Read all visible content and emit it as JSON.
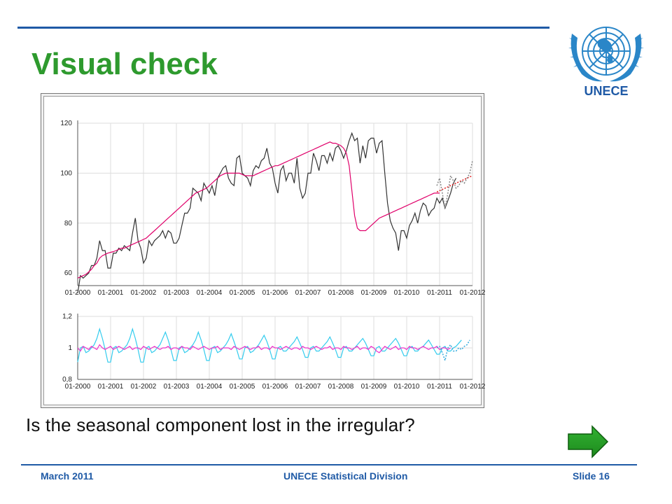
{
  "slide": {
    "title": "Visual check",
    "question": "Is the seasonal component lost in the irregular?",
    "footer_left": "March 2011",
    "footer_center": "UNECE Statistical Division",
    "footer_right": "Slide 16",
    "logo_text": "UNECE",
    "accent_color": "#1f5aa6",
    "title_color": "#2e9a2e",
    "next_icon": "right-arrow-icon"
  },
  "chart_data": [
    {
      "type": "line",
      "x_tick_labels": [
        "01-2000",
        "01-2001",
        "01-2002",
        "01-2003",
        "01-2004",
        "01-2005",
        "01-2006",
        "01-2007",
        "01-2008",
        "01-2009",
        "01-2010",
        "01-2011",
        "01-2012"
      ],
      "y_tick_labels": [
        "60",
        "80",
        "100",
        "120"
      ],
      "ylim": [
        55,
        120
      ],
      "grid": true,
      "series": [
        {
          "key": "raw",
          "color": "#333333",
          "start_year": 2000,
          "values": [
            52,
            59,
            58,
            59,
            60,
            63,
            63,
            66,
            73,
            69,
            69,
            62,
            62,
            68,
            68,
            70,
            69,
            71,
            70,
            69,
            76,
            82,
            73,
            70,
            64,
            66,
            73,
            71,
            73,
            74,
            75,
            77,
            74,
            77,
            76,
            72,
            72,
            74,
            79,
            84,
            84,
            86,
            94,
            93,
            92,
            89,
            96,
            94,
            92,
            95,
            91,
            98,
            100,
            102,
            103,
            98,
            96,
            95,
            106,
            107,
            100,
            99,
            98,
            95,
            101,
            103,
            102,
            105,
            106,
            110,
            104,
            102,
            96,
            92,
            101,
            103,
            97,
            100,
            100,
            96,
            106,
            94,
            90,
            92,
            100,
            100,
            108,
            105,
            101,
            107,
            107,
            104,
            108,
            105,
            110,
            111,
            109,
            106,
            109,
            113,
            116,
            113,
            114,
            104,
            111,
            106,
            113,
            114,
            114,
            108,
            112,
            113,
            100,
            88,
            81,
            78,
            76,
            69,
            77,
            77,
            74,
            79,
            81,
            84,
            80,
            85,
            88,
            87,
            83,
            85,
            86,
            90,
            88,
            90,
            86,
            89,
            92,
            96,
            98
          ]
        },
        {
          "key": "trend",
          "color": "#e0006a",
          "start_year": 2000,
          "values": [
            58,
            58.5,
            59,
            59.5,
            60.5,
            61.5,
            63,
            64,
            66,
            67,
            67.5,
            68,
            68.3,
            68.6,
            69,
            69.5,
            70,
            70,
            70.5,
            71,
            71.5,
            72,
            72.5,
            73,
            73.5,
            74,
            75,
            76,
            77,
            78,
            79,
            80,
            81,
            82,
            83,
            84,
            85,
            86,
            87,
            88,
            89,
            90,
            91,
            92,
            92.5,
            93,
            93.5,
            94,
            95,
            96,
            97,
            98,
            99,
            99.5,
            100,
            100,
            100,
            100,
            100,
            100,
            99.5,
            99,
            99,
            99,
            99,
            99.5,
            100,
            100.5,
            101,
            101.5,
            102,
            102.5,
            103,
            103,
            103.5,
            104,
            104.5,
            105,
            105.5,
            106,
            106.5,
            107,
            107.5,
            108,
            108.5,
            109,
            109.5,
            110,
            110.5,
            111,
            111.5,
            112,
            112.5,
            112,
            112,
            111.5,
            111,
            110,
            108,
            103,
            93,
            83,
            78,
            77,
            77,
            77,
            78,
            79,
            80,
            81,
            82,
            82.5,
            83,
            83.5,
            84,
            84.5,
            85,
            85.5,
            86,
            86.5,
            87,
            87.5,
            88,
            88.5,
            89,
            89.5,
            90,
            90.5,
            91,
            91.5,
            92,
            92,
            92
          ]
        },
        {
          "key": "trend_forecast",
          "color": "#e02020",
          "start_year": 2010.917,
          "values": [
            92.5,
            93,
            93.5,
            94,
            94.5,
            95,
            95.5,
            96,
            96.5,
            97,
            97.5,
            98,
            98.5,
            99
          ]
        },
        {
          "key": "raw_forecast",
          "color": "#888888",
          "start_year": 2010.917,
          "values": [
            95,
            98,
            92,
            86,
            92,
            99,
            97,
            94,
            95,
            97,
            96,
            98,
            100,
            105
          ]
        }
      ]
    },
    {
      "type": "line",
      "x_tick_labels": [
        "01-2000",
        "01-2001",
        "01-2002",
        "01-2003",
        "01-2004",
        "01-2005",
        "01-2006",
        "01-2007",
        "01-2008",
        "01-2009",
        "01-2010",
        "01-2011",
        "01-2012"
      ],
      "y_tick_labels": [
        "0,8",
        "1",
        "1,2"
      ],
      "ylim": [
        0.8,
        1.2
      ],
      "grid": true,
      "series": [
        {
          "key": "seasonal",
          "color": "#33ccee",
          "start_year": 2000,
          "values": [
            0.91,
            1.0,
            1.01,
            0.97,
            0.98,
            1.0,
            1.02,
            1.06,
            1.12,
            1.06,
            0.99,
            0.91,
            0.91,
            1.0,
            1.01,
            0.97,
            0.98,
            1.0,
            1.02,
            1.06,
            1.12,
            1.06,
            0.99,
            0.91,
            0.91,
            1.0,
            1.01,
            0.97,
            0.98,
            1.0,
            1.02,
            1.06,
            1.1,
            1.05,
            0.99,
            0.92,
            0.92,
            1.0,
            1.01,
            0.97,
            0.98,
            1.0,
            1.02,
            1.05,
            1.1,
            1.05,
            0.99,
            0.92,
            0.92,
            1.0,
            1.01,
            0.97,
            0.98,
            1.0,
            1.02,
            1.05,
            1.09,
            1.04,
            0.99,
            0.93,
            0.93,
            1.0,
            1.01,
            0.97,
            0.98,
            1.0,
            1.02,
            1.05,
            1.08,
            1.04,
            0.99,
            0.93,
            0.93,
            1.0,
            1.01,
            0.98,
            0.98,
            1.0,
            1.02,
            1.04,
            1.07,
            1.03,
            0.99,
            0.94,
            0.94,
            1.0,
            1.01,
            0.98,
            0.98,
            1.0,
            1.02,
            1.04,
            1.07,
            1.03,
            0.99,
            0.94,
            0.94,
            1.0,
            1.01,
            0.98,
            0.98,
            1.0,
            1.02,
            1.04,
            1.06,
            1.03,
            0.99,
            0.95,
            0.95,
            1.0,
            1.01,
            0.98,
            0.98,
            1.0,
            1.02,
            1.04,
            1.06,
            1.03,
            0.99,
            0.95,
            0.95,
            1.0,
            1.01,
            0.98,
            0.98,
            1.0,
            1.01,
            1.03,
            1.05,
            1.02,
            0.99,
            0.96,
            0.96,
            1.0,
            1.01,
            0.98,
            0.98,
            1.0,
            1.01,
            1.03,
            1.05
          ]
        },
        {
          "key": "irregular",
          "color": "#ee33cc",
          "start_year": 2000,
          "values": [
            1.0,
            0.98,
            1.01,
            1.0,
            0.99,
            1.01,
            1.0,
            0.99,
            1.02,
            1.0,
            0.99,
            1.0,
            1.01,
            0.99,
            1.0,
            1.01,
            1.0,
            0.99,
            1.0,
            1.01,
            0.99,
            1.0,
            1.0,
            0.99,
            1.01,
            1.0,
            0.99,
            1.0,
            1.01,
            1.0,
            0.99,
            1.0,
            1.0,
            1.01,
            0.99,
            1.0,
            1.0,
            0.99,
            1.01,
            1.0,
            1.0,
            0.99,
            1.01,
            1.0,
            0.99,
            1.0,
            1.01,
            1.0,
            0.99,
            1.0,
            1.0,
            1.01,
            0.99,
            1.0,
            1.0,
            1.0,
            0.99,
            1.01,
            1.0,
            0.99,
            1.0,
            1.01,
            1.0,
            0.99,
            1.0,
            1.0,
            1.01,
            0.99,
            1.0,
            1.0,
            0.99,
            1.01,
            1.0,
            1.0,
            0.99,
            1.0,
            1.01,
            1.0,
            0.99,
            1.0,
            1.0,
            0.99,
            1.01,
            1.0,
            1.0,
            0.99,
            1.0,
            1.01,
            1.0,
            0.99,
            1.0,
            1.0,
            1.01,
            0.99,
            1.0,
            1.0,
            0.99,
            1.01,
            1.0,
            1.0,
            0.99,
            1.0,
            1.01,
            0.99,
            1.0,
            1.0,
            0.99,
            1.01,
            1.0,
            0.98,
            0.97,
            0.99,
            1.01,
            1.0,
            0.99,
            1.0,
            1.01,
            0.99,
            1.0,
            1.0,
            0.99,
            1.01,
            1.0,
            1.0,
            0.99,
            1.0,
            1.01,
            1.0,
            0.99,
            1.0,
            1.0,
            1.01,
            0.99,
            1.0,
            1.0,
            0.99,
            1.0
          ]
        },
        {
          "key": "seasonal_forecast",
          "color": "#33aadd",
          "start_year": 2010.917,
          "values": [
            1.0,
            1.01,
            0.97,
            0.92,
            1.0,
            1.02,
            0.98,
            0.98,
            1.0,
            0.99,
            1.01,
            1.02,
            1.05
          ]
        }
      ]
    }
  ]
}
